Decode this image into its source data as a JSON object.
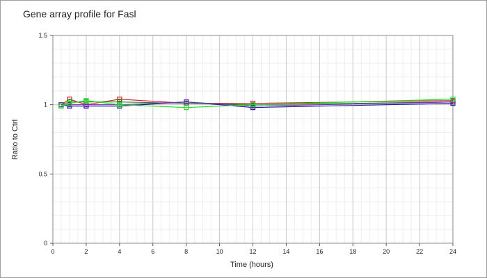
{
  "chart_data": {
    "type": "line",
    "title": "Gene array profile for Fasl",
    "xlabel": "Time (hours)",
    "ylabel": "Ratio to Ctrl",
    "xlim": [
      0,
      24
    ],
    "ylim": [
      0,
      1.5
    ],
    "x_ticks": [
      "0",
      "2",
      "4",
      "6",
      "8",
      "10",
      "12",
      "14",
      "16",
      "18",
      "20",
      "22",
      "24"
    ],
    "y_ticks": [
      "0",
      "0.5",
      "1",
      "1.5"
    ],
    "grid": true,
    "legend": "none",
    "series": [
      {
        "color": "#cc2222",
        "marker": "square",
        "points": [
          [
            0.5,
            1.0
          ],
          [
            1,
            1.04
          ],
          [
            2,
            1.0
          ],
          [
            4,
            1.04
          ],
          [
            8,
            1.01
          ],
          [
            12,
            1.01
          ],
          [
            24,
            1.03
          ]
        ]
      },
      {
        "color": "#1a1a99",
        "marker": "square",
        "points": [
          [
            0.5,
            1.0
          ],
          [
            1,
            0.99
          ],
          [
            2,
            0.99
          ],
          [
            4,
            0.99
          ],
          [
            8,
            1.02
          ],
          [
            12,
            0.98
          ],
          [
            24,
            1.01
          ]
        ]
      },
      {
        "color": "#228822",
        "marker": "square",
        "points": [
          [
            0.5,
            1.0
          ],
          [
            1,
            1.02
          ],
          [
            2,
            1.02
          ],
          [
            4,
            1.02
          ],
          [
            8,
            1.01
          ],
          [
            12,
            1.0
          ],
          [
            24,
            1.02
          ]
        ]
      },
      {
        "color": "#7b2bbf",
        "marker": "square",
        "points": [
          [
            0.5,
            1.0
          ],
          [
            1,
            1.0
          ],
          [
            2,
            1.0
          ],
          [
            4,
            1.0
          ],
          [
            8,
            1.02
          ],
          [
            12,
            0.99
          ],
          [
            24,
            1.02
          ]
        ]
      },
      {
        "color": "#22dd22",
        "marker": "square",
        "points": [
          [
            0.5,
            0.99
          ],
          [
            1,
            1.01
          ],
          [
            2,
            1.03
          ],
          [
            4,
            1.0
          ],
          [
            8,
            0.98
          ],
          [
            12,
            1.0
          ],
          [
            24,
            1.04
          ]
        ]
      }
    ]
  }
}
